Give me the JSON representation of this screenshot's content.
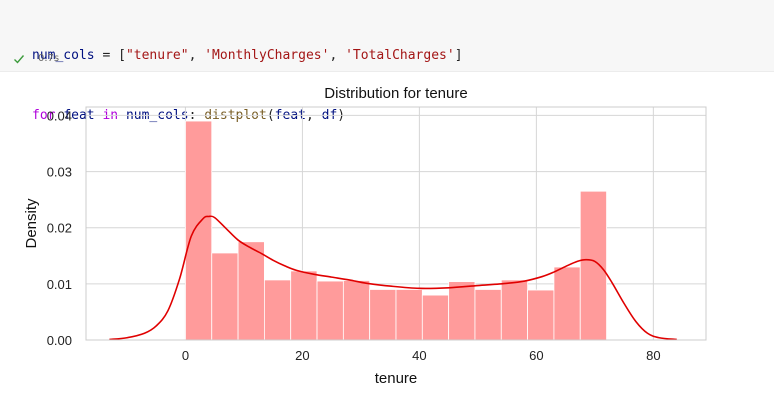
{
  "code": {
    "line1": [
      {
        "t": "num_cols",
        "c": "tok-var"
      },
      {
        "t": " = [",
        "c": "tok-punc"
      },
      {
        "t": "\"tenure\"",
        "c": "tok-str"
      },
      {
        "t": ", ",
        "c": "tok-punc"
      },
      {
        "t": "'MonthlyCharges'",
        "c": "tok-str"
      },
      {
        "t": ", ",
        "c": "tok-punc"
      },
      {
        "t": "'TotalCharges'",
        "c": "tok-str"
      },
      {
        "t": "]",
        "c": "tok-punc"
      }
    ],
    "line2": [
      {
        "t": "for",
        "c": "tok-kw"
      },
      {
        "t": " ",
        "c": "tok-punc"
      },
      {
        "t": "feat",
        "c": "tok-var"
      },
      {
        "t": " ",
        "c": "tok-punc"
      },
      {
        "t": "in",
        "c": "tok-kw"
      },
      {
        "t": " ",
        "c": "tok-punc"
      },
      {
        "t": "num_cols",
        "c": "tok-var"
      },
      {
        "t": ": ",
        "c": "tok-punc"
      },
      {
        "t": "distplot",
        "c": "tok-fn"
      },
      {
        "t": "(",
        "c": "tok-punc"
      },
      {
        "t": "feat",
        "c": "tok-var"
      },
      {
        "t": ", ",
        "c": "tok-punc"
      },
      {
        "t": "df",
        "c": "tok-var"
      },
      {
        "t": ")",
        "c": "tok-punc"
      }
    ]
  },
  "execution": {
    "status_icon": "check-icon",
    "status_color": "#3c9b3c",
    "time": "0.7s"
  },
  "chart_data": {
    "type": "bar",
    "title": "Distribution for tenure",
    "xlabel": "tenure",
    "ylabel": "Density",
    "xlim": [
      -17,
      89
    ],
    "ylim": [
      0,
      0.0415
    ],
    "xticks": [
      0,
      20,
      40,
      60,
      80
    ],
    "xtick_labels": [
      "0",
      "20",
      "40",
      "60",
      "80"
    ],
    "yticks": [
      0,
      0.01,
      0.02,
      0.03,
      0.04
    ],
    "ytick_labels": [
      "0.00",
      "0.01",
      "0.02",
      "0.03",
      "0.04"
    ],
    "grid": true,
    "bar_color": "#ff9b9b",
    "line_color": "#e00000",
    "bins": [
      {
        "x0": 0,
        "x1": 4.5,
        "density": 0.039
      },
      {
        "x0": 4.5,
        "x1": 9,
        "density": 0.0155
      },
      {
        "x0": 9,
        "x1": 13.5,
        "density": 0.0175
      },
      {
        "x0": 13.5,
        "x1": 18,
        "density": 0.0107
      },
      {
        "x0": 18,
        "x1": 22.5,
        "density": 0.0123
      },
      {
        "x0": 22.5,
        "x1": 27,
        "density": 0.0105
      },
      {
        "x0": 27,
        "x1": 31.5,
        "density": 0.0106
      },
      {
        "x0": 31.5,
        "x1": 36,
        "density": 0.009
      },
      {
        "x0": 36,
        "x1": 40.5,
        "density": 0.009
      },
      {
        "x0": 40.5,
        "x1": 45,
        "density": 0.008
      },
      {
        "x0": 45,
        "x1": 49.5,
        "density": 0.0104
      },
      {
        "x0": 49.5,
        "x1": 54,
        "density": 0.009
      },
      {
        "x0": 54,
        "x1": 58.5,
        "density": 0.0107
      },
      {
        "x0": 58.5,
        "x1": 63,
        "density": 0.0089
      },
      {
        "x0": 63,
        "x1": 67.5,
        "density": 0.013
      },
      {
        "x0": 67.5,
        "x1": 72,
        "density": 0.0265
      }
    ],
    "kde": {
      "x": [
        -13,
        -10,
        -7,
        -5,
        -3,
        -1,
        1,
        3,
        4,
        5,
        7,
        9,
        11,
        13,
        15,
        17,
        19,
        22,
        25,
        28,
        31,
        35,
        40,
        45,
        50,
        55,
        58,
        61,
        63,
        65,
        67,
        68.5,
        70,
        71.5,
        73,
        75,
        77,
        79,
        81,
        84
      ],
      "y": [
        0.0001,
        0.0004,
        0.0012,
        0.0025,
        0.0052,
        0.0109,
        0.0185,
        0.0216,
        0.022,
        0.0218,
        0.0198,
        0.0178,
        0.0165,
        0.0154,
        0.0142,
        0.0132,
        0.0124,
        0.0117,
        0.0112,
        0.0107,
        0.0101,
        0.0096,
        0.0092,
        0.0093,
        0.0097,
        0.0101,
        0.0105,
        0.0113,
        0.0121,
        0.0131,
        0.014,
        0.0143,
        0.014,
        0.0125,
        0.0101,
        0.0065,
        0.0033,
        0.0012,
        0.0004,
        0.0001
      ]
    }
  }
}
